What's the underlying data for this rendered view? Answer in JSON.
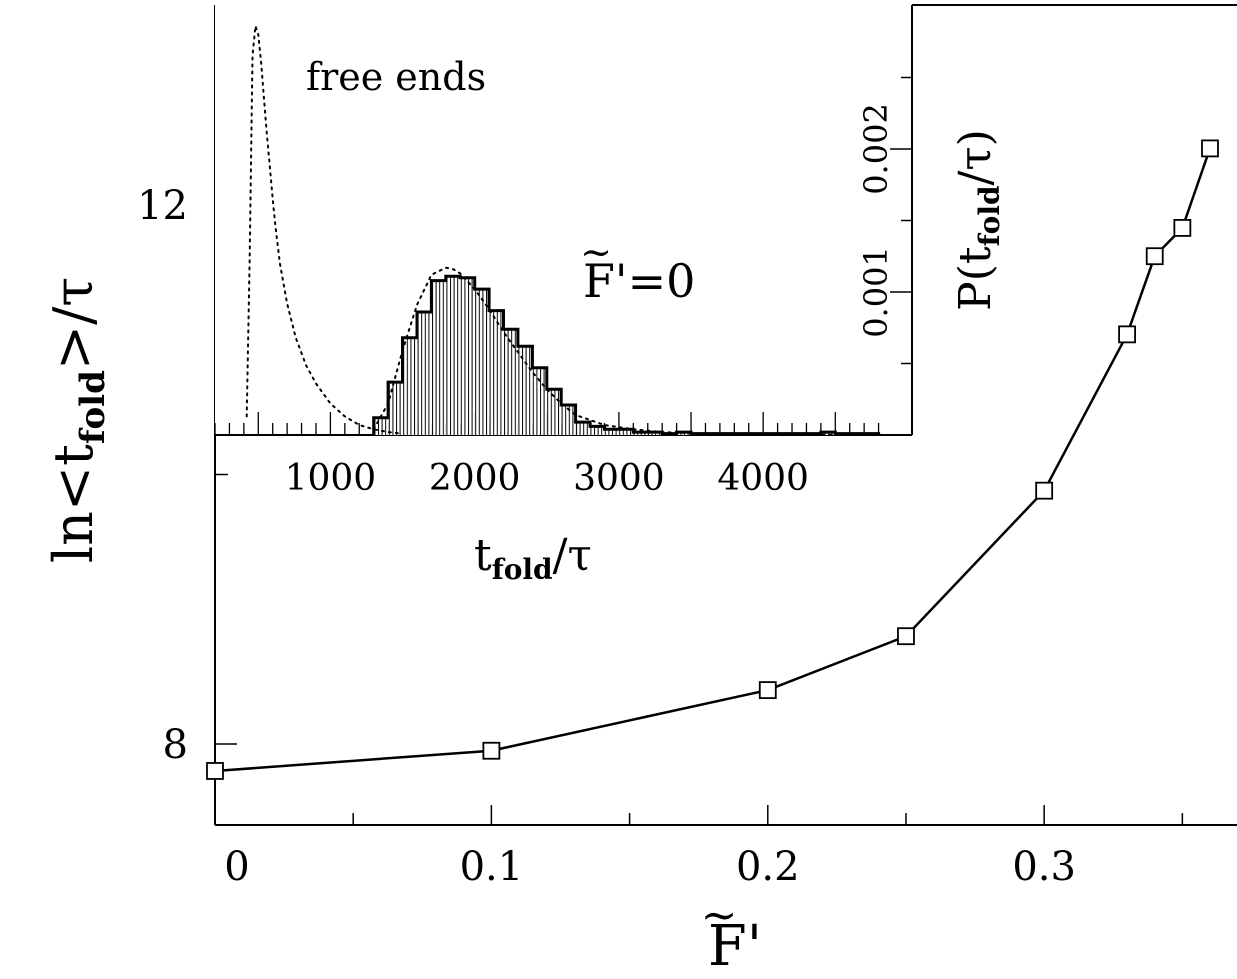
{
  "chart_data": [
    {
      "type": "line",
      "title": "",
      "xlabel": "F̃'",
      "ylabel": "ln<t_fold>/τ",
      "xlim": [
        0,
        0.36
      ],
      "ylim": [
        7.4,
        13.5
      ],
      "x_ticks": [
        "0",
        "0.1",
        "0.2",
        "0.3"
      ],
      "y_ticks": [
        "8",
        "12"
      ],
      "marker": "open-square",
      "series": [
        {
          "x": [
            0.0,
            0.1,
            0.2,
            0.25,
            0.3,
            0.33,
            0.34,
            0.35,
            0.36
          ],
          "values": [
            7.8,
            7.95,
            8.4,
            8.8,
            9.88,
            11.04,
            11.62,
            11.83,
            12.42
          ]
        }
      ]
    },
    {
      "type": "histogram",
      "title": "",
      "xlabel": "t_fold/τ",
      "ylabel": "P(t_fold/τ)",
      "xlim": [
        200,
        4900
      ],
      "ylim": [
        0,
        0.00288
      ],
      "x_ticks": [
        "1000",
        "2000",
        "3000",
        "4000"
      ],
      "y_ticks": [
        "0.001",
        "0.002"
      ],
      "annotations": [
        "free ends",
        "F̃'=0"
      ],
      "histogram": {
        "bin_width": 100,
        "bin_starts": [
          1300,
          1400,
          1500,
          1600,
          1700,
          1800,
          1900,
          2000,
          2100,
          2200,
          2300,
          2400,
          2500,
          2600,
          2700,
          2800,
          2900,
          3000,
          3100,
          3200,
          3300,
          3400,
          3500,
          3600,
          3700,
          3800,
          3900,
          4000,
          4100,
          4200,
          4300,
          4400,
          4500,
          4600,
          4700
        ],
        "values": [
          0.00012,
          0.00037,
          0.00068,
          0.00086,
          0.00108,
          0.00111,
          0.0011,
          0.00102,
          0.00087,
          0.00074,
          0.00062,
          0.00047,
          0.00032,
          0.00021,
          9e-05,
          6e-05,
          4e-05,
          4e-05,
          2e-05,
          2e-05,
          1e-05,
          2e-05,
          1e-05,
          1e-05,
          1e-05,
          1e-05,
          1e-05,
          1e-05,
          1e-05,
          1e-05,
          1e-05,
          2e-05,
          1e-05,
          1e-05,
          1e-05
        ]
      },
      "series": [
        {
          "style": "dotted",
          "x": [
            420,
            440,
            460,
            480,
            500,
            520,
            540,
            560,
            580,
            600,
            620,
            650,
            700,
            760,
            830,
            900,
            1000,
            1100,
            1200,
            1300,
            1400,
            1500
          ],
          "values": [
            0.00013,
            0.0012,
            0.00265,
            0.00286,
            0.0028,
            0.0026,
            0.00235,
            0.0021,
            0.00188,
            0.00165,
            0.00145,
            0.0012,
            0.00092,
            0.00068,
            0.00049,
            0.00036,
            0.00022,
            0.00013,
            7e-05,
            4e-05,
            2e-05,
            1e-05
          ]
        },
        {
          "style": "dotted",
          "x": [
            1300,
            1400,
            1500,
            1600,
            1700,
            1800,
            1850,
            1900,
            2000,
            2100,
            2200,
            2300,
            2400,
            2500,
            2600,
            2700,
            2900,
            3100,
            3300,
            3600,
            4000,
            4500
          ],
          "values": [
            4e-05,
            0.00022,
            0.00059,
            0.00091,
            0.00112,
            0.00117,
            0.00116,
            0.00113,
            0.00102,
            0.00088,
            0.00072,
            0.00058,
            0.00044,
            0.00032,
            0.00022,
            0.00014,
            7e-05,
            4e-05,
            2e-05,
            1e-05,
            1e-05,
            0.0
          ]
        }
      ]
    }
  ]
}
